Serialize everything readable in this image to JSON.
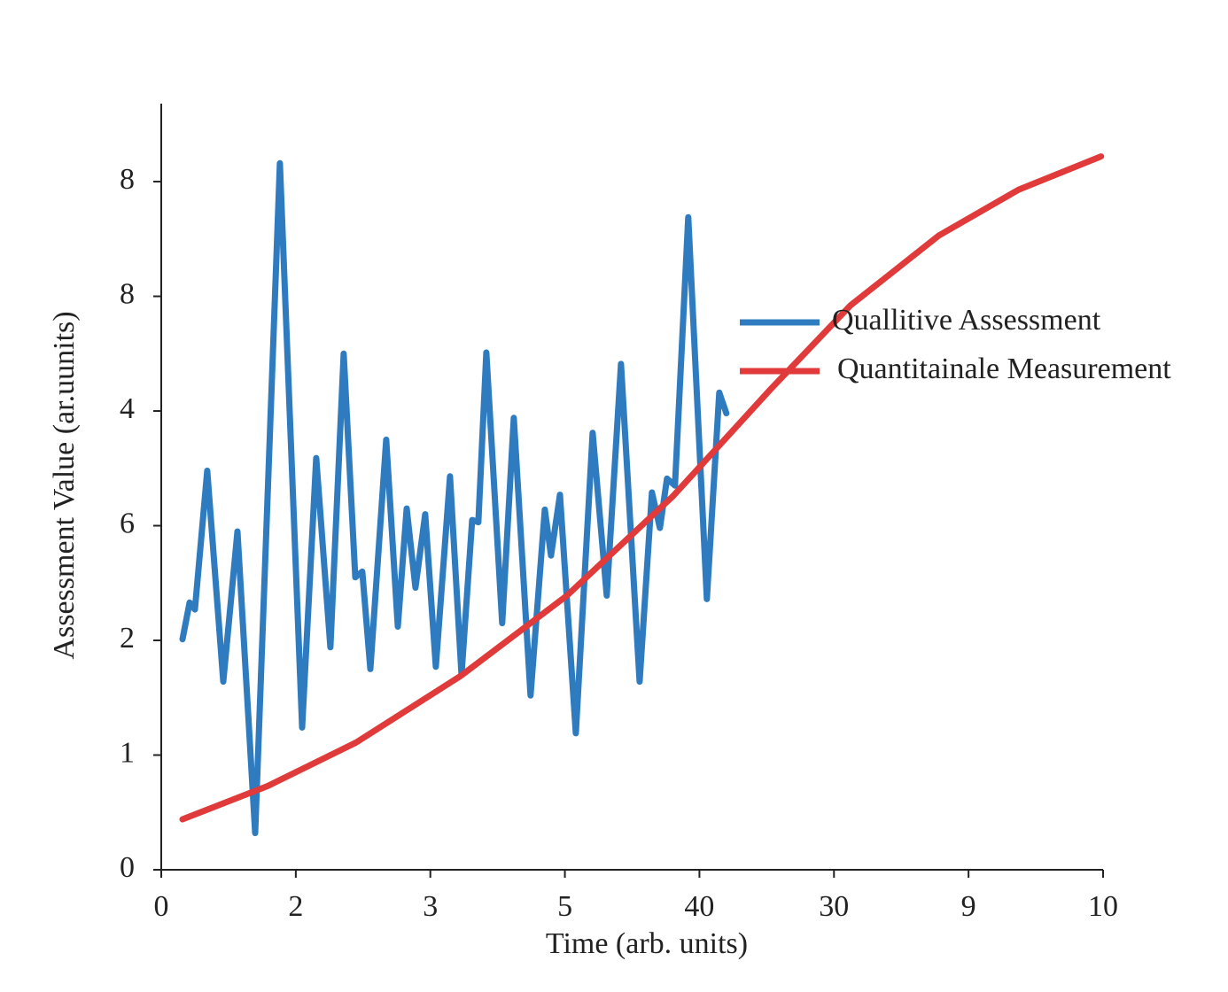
{
  "chart_data": {
    "type": "line",
    "x_label": "Time (arb. units)",
    "y_label": "Assessment Value (ar.uunits)",
    "xlim": [
      0,
      7
    ],
    "ylim": [
      0,
      6.68
    ],
    "xticks": [
      0,
      {
        "value": 1,
        "label": "2"
      },
      {
        "value": 2,
        "label": "3"
      },
      {
        "value": 3,
        "label": "5"
      },
      {
        "value": 4,
        "label": "40"
      },
      {
        "value": 5,
        "label": "30"
      },
      {
        "value": 6,
        "label": "9"
      },
      {
        "value": 7,
        "label": "10"
      }
    ],
    "yticks": [
      0,
      1,
      {
        "value": 2,
        "label": "2"
      },
      {
        "value": 3,
        "label": "6"
      },
      {
        "value": 4,
        "label": "4"
      },
      {
        "value": 5,
        "label": "8"
      },
      {
        "value": 6,
        "label": "8"
      }
    ],
    "grid": false,
    "legend": "center right",
    "series": [
      {
        "name": "Quallitive Assessment",
        "color": "#2f7bbf",
        "x": [
          0.158,
          0.211,
          0.25,
          0.342,
          0.461,
          0.566,
          0.698,
          0.882,
          1.047,
          1.152,
          1.257,
          1.356,
          1.442,
          1.494,
          1.554,
          1.672,
          1.758,
          1.824,
          1.889,
          1.962,
          2.041,
          2.146,
          2.232,
          2.311,
          2.357,
          2.416,
          2.534,
          2.62,
          2.745,
          2.851,
          2.897,
          2.963,
          3.081,
          3.206,
          3.311,
          3.417,
          3.555,
          3.647,
          3.706,
          3.759,
          3.818,
          3.917,
          4.055,
          4.147,
          4.2
        ],
        "values": [
          2.01,
          2.33,
          2.27,
          3.48,
          1.64,
          2.95,
          0.32,
          6.16,
          1.24,
          3.59,
          1.94,
          4.5,
          2.55,
          2.6,
          1.75,
          3.75,
          2.12,
          3.15,
          2.46,
          3.1,
          1.77,
          3.43,
          1.7,
          3.05,
          3.03,
          4.51,
          2.15,
          3.94,
          1.52,
          3.14,
          2.74,
          3.27,
          1.19,
          3.81,
          2.39,
          4.41,
          1.64,
          3.29,
          2.98,
          3.41,
          3.35,
          5.69,
          2.36,
          4.16,
          3.98
        ]
      },
      {
        "name": "Quantitainale Measurement",
        "color": "#e03a3a",
        "x": [
          0.158,
          0.79,
          1.448,
          2.225,
          3.015,
          3.805,
          4.529,
          5.122,
          5.78,
          6.373,
          6.985
        ],
        "values": [
          0.44,
          0.73,
          1.11,
          1.69,
          2.39,
          3.26,
          4.19,
          4.92,
          5.53,
          5.93,
          6.22
        ]
      }
    ]
  }
}
